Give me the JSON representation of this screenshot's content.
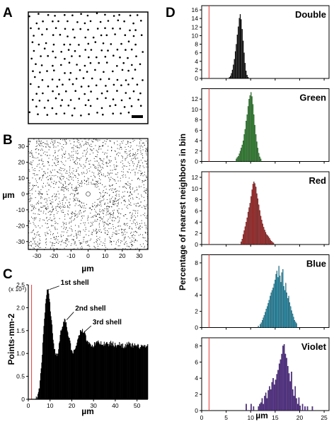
{
  "panel_labels": [
    "A",
    "B",
    "C",
    "D"
  ],
  "chart_data": [
    {
      "id": "A",
      "type": "scatter",
      "title": "",
      "note": "point lattice with scale bar"
    },
    {
      "id": "B",
      "type": "scatter",
      "title": "",
      "xlabel": "µm",
      "ylabel": "µm",
      "xlim": [
        -35,
        35
      ],
      "ylim": [
        -35,
        35
      ],
      "xticks": [
        "-30",
        "-20",
        "-10",
        "0",
        "10",
        "20",
        "30"
      ],
      "yticks": [
        "30",
        "20",
        "10",
        "0",
        "-10",
        "-20",
        "-30"
      ]
    },
    {
      "id": "C",
      "type": "bar",
      "xlabel": "µm",
      "ylabel": "Points·mm-2",
      "multiplier_label": "(x 10⁴)",
      "xlim": [
        0,
        55
      ],
      "ylim": [
        0,
        2.5
      ],
      "xticks": [
        "0",
        "10",
        "20",
        "30",
        "40",
        "50"
      ],
      "yticks": [
        "0",
        "0.5",
        "1.0",
        "1.5",
        "2.0",
        "2.5"
      ],
      "annotations": [
        {
          "text": "1st shell",
          "x": 9,
          "y": 2.38
        },
        {
          "text": "2nd shell",
          "x": 17,
          "y": 1.72
        },
        {
          "text": "3rd shell",
          "x": 25,
          "y": 1.45
        }
      ],
      "red_line_x": 1.5,
      "profile": [
        [
          0,
          0
        ],
        [
          3,
          0
        ],
        [
          4,
          0.05
        ],
        [
          5,
          0.25
        ],
        [
          6,
          0.8
        ],
        [
          7,
          1.6
        ],
        [
          8,
          2.2
        ],
        [
          8.6,
          2.45
        ],
        [
          9.4,
          2.3
        ],
        [
          10.5,
          1.7
        ],
        [
          11.5,
          1.2
        ],
        [
          12.5,
          0.95
        ],
        [
          13.5,
          1.05
        ],
        [
          14.5,
          1.4
        ],
        [
          15.5,
          1.6
        ],
        [
          16.5,
          1.72
        ],
        [
          17.5,
          1.6
        ],
        [
          18.5,
          1.35
        ],
        [
          19.5,
          1.12
        ],
        [
          20.5,
          1.05
        ],
        [
          21.5,
          1.1
        ],
        [
          22.5,
          1.28
        ],
        [
          23.5,
          1.45
        ],
        [
          24.5,
          1.52
        ],
        [
          25.5,
          1.47
        ],
        [
          26.5,
          1.33
        ],
        [
          28,
          1.2
        ],
        [
          30,
          1.18
        ],
        [
          32,
          1.25
        ],
        [
          34,
          1.22
        ],
        [
          36,
          1.2
        ],
        [
          38,
          1.22
        ],
        [
          40,
          1.18
        ],
        [
          42,
          1.2
        ],
        [
          44,
          1.17
        ],
        [
          46,
          1.2
        ],
        [
          48,
          1.17
        ],
        [
          50,
          1.15
        ],
        [
          52,
          1.16
        ],
        [
          55,
          1.15
        ]
      ]
    },
    {
      "id": "D",
      "type": "bar",
      "ylabel": "Percentage of nearest neighbors in bin",
      "xlabel": "µm",
      "xlim": [
        0,
        26
      ],
      "xticks": [
        "0",
        "5",
        "10",
        "15",
        "20",
        "25"
      ],
      "red_line_x": 1.5,
      "panels": [
        {
          "name": "Double",
          "color": "#000000",
          "ylim": [
            0,
            17
          ],
          "yticks": [
            "0",
            "2",
            "4",
            "6",
            "8",
            "10",
            "12",
            "14",
            "16"
          ],
          "start": 5.6,
          "width": 0.2,
          "values": [
            0.3,
            0.6,
            1.2,
            2.0,
            3.2,
            4.5,
            6.3,
            8.0,
            10.2,
            12.1,
            14.1,
            15.0,
            13.8,
            11.5,
            8.8,
            6.0,
            3.6,
            1.8,
            0.8,
            0.3
          ]
        },
        {
          "name": "Green",
          "color": "#2ca02c",
          "ylim": [
            0,
            14
          ],
          "yticks": [
            "0",
            "2",
            "4",
            "6",
            "8",
            "10",
            "12"
          ],
          "start": 7.0,
          "width": 0.2,
          "values": [
            0.5,
            0.8,
            1.0,
            1.5,
            2.0,
            2.6,
            3.2,
            4.0,
            5.2,
            6.2,
            7.8,
            9.0,
            10.6,
            12.0,
            12.7,
            13.3,
            12.5,
            11.0,
            9.0,
            7.0,
            5.2,
            3.8,
            2.6,
            1.6,
            0.9,
            0.5
          ]
        },
        {
          "name": "Red",
          "color": "#cc1f1f",
          "ylim": [
            0,
            13
          ],
          "yticks": [
            "0",
            "2",
            "4",
            "6",
            "8",
            "10",
            "12"
          ],
          "start": 8.0,
          "width": 0.2,
          "values": [
            0.5,
            1.0,
            1.8,
            2.5,
            3.2,
            4.0,
            4.8,
            5.8,
            6.6,
            7.4,
            8.6,
            9.8,
            10.8,
            11.2,
            10.9,
            10.3,
            9.1,
            8.2,
            7.1,
            6.1,
            5.1,
            4.4,
            3.7,
            3.1,
            2.6,
            2.2,
            1.8,
            1.6,
            1.4,
            1.1,
            0.8,
            0.6,
            0.4,
            0.3
          ]
        },
        {
          "name": "Blue",
          "color": "#1fb0d8",
          "ylim": [
            0,
            9
          ],
          "yticks": [
            "0",
            "2",
            "4",
            "6",
            "8"
          ],
          "start": 11.5,
          "width": 0.2,
          "values": [
            0.2,
            0,
            0.4,
            0.6,
            0.9,
            1.2,
            1.5,
            1.9,
            2.3,
            2.6,
            3.0,
            3.4,
            3.9,
            4.3,
            4.6,
            4.9,
            5.4,
            5.9,
            6.6,
            7.0,
            6.2,
            7.6,
            6.4,
            5.6,
            6.8,
            7.2,
            5.1,
            4.6,
            5.5,
            4.3,
            3.6,
            3.9,
            3.1,
            2.6,
            2.1,
            1.7,
            1.3,
            0.9,
            0.7,
            0.5
          ]
        },
        {
          "name": "Violet",
          "color": "#5a2ca0",
          "ylim": [
            0,
            9
          ],
          "yticks": [
            "0",
            "2",
            "4",
            "6",
            "8"
          ],
          "start": 9.0,
          "width": 0.25,
          "values": [
            0.8,
            0,
            0,
            0,
            0.8,
            0,
            0.5,
            0,
            0,
            0,
            0.5,
            0.8,
            1.0,
            1.5,
            0.8,
            1.8,
            2.2,
            1.5,
            2.5,
            3.0,
            2.6,
            3.5,
            4.0,
            3.2,
            3.8,
            4.5,
            5.0,
            5.8,
            6.3,
            7.0,
            8.0,
            8.2,
            7.0,
            6.5,
            5.5,
            4.6,
            3.6,
            4.8,
            2.6,
            1.8,
            3.0,
            1.5,
            0.8,
            1.6,
            0.6,
            0,
            0.8,
            0,
            0.5,
            0,
            0.5,
            0,
            0,
            0,
            0.5
          ]
        }
      ]
    }
  ]
}
